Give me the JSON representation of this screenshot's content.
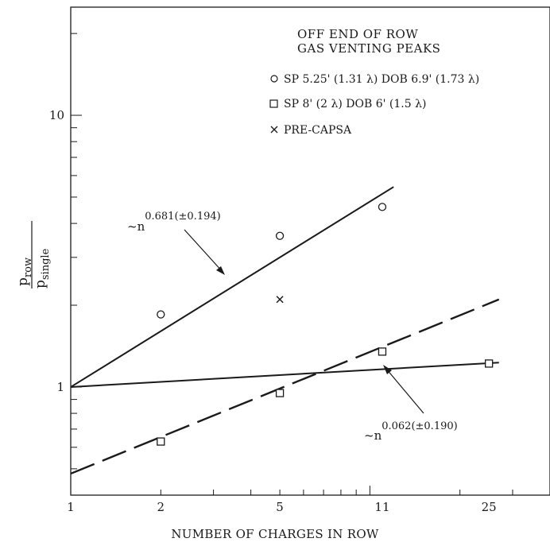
{
  "chart_data": {
    "type": "scatter",
    "title": "",
    "xlabel": "NUMBER OF CHARGES IN ROW",
    "ylabel_main": "p",
    "ylabel_main_sub": "row",
    "ylabel_denom": "p",
    "ylabel_denom_sub": "single",
    "x_scale": "log",
    "y_scale": "log",
    "xlim": [
      1,
      40
    ],
    "ylim": [
      0.4,
      25
    ],
    "x_tick_labels": [
      "1",
      "2",
      "5",
      "11",
      "25"
    ],
    "x_ticks": [
      1,
      2,
      5,
      11,
      25
    ],
    "y_tick_labels": [
      "1",
      "10"
    ],
    "y_ticks": [
      1,
      10
    ],
    "legend_title_lines": [
      "OFF END OF ROW",
      "GAS VENTING PEAKS"
    ],
    "legend_placement": "top-right",
    "series": [
      {
        "name": "SP 5.25' (1.31 λ) DOB 6.9' (1.73 λ)",
        "marker": "circle",
        "x": [
          2,
          5,
          11
        ],
        "y": [
          1.85,
          3.6,
          4.6
        ]
      },
      {
        "name": "SP 8' (2 λ) DOB 6' (1.5 λ)",
        "marker": "square",
        "x": [
          2,
          5,
          11,
          25
        ],
        "y": [
          0.63,
          0.95,
          1.35,
          1.22
        ]
      },
      {
        "name": "PRE-CAPSA",
        "marker": "x",
        "x": [
          5
        ],
        "y": [
          2.1
        ]
      }
    ],
    "fit_lines": [
      {
        "style": "solid",
        "x": [
          1,
          12
        ],
        "y": [
          1.0,
          5.45
        ],
        "label_prefix": "~n",
        "label_exponent": "0.681(±0.194)"
      },
      {
        "style": "solid",
        "x": [
          1,
          27
        ],
        "y": [
          1.0,
          1.23
        ],
        "label_prefix": "~n",
        "label_exponent": "0.062(±0.190)"
      },
      {
        "style": "dashed",
        "x": [
          1,
          27
        ],
        "y": [
          0.48,
          2.1
        ],
        "label_prefix": "",
        "label_exponent": ""
      }
    ]
  }
}
